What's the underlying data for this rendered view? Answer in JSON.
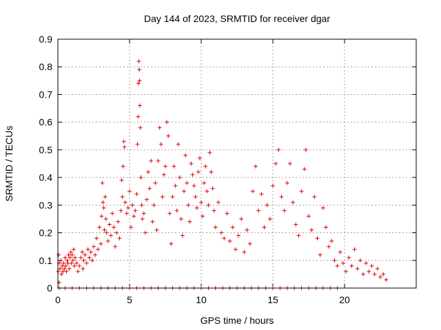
{
  "chart_data": {
    "type": "scatter",
    "title": "Day 144 of 2023, SRMTID for receiver dgar",
    "xlabel": "GPS time / hours",
    "ylabel": "SRMTID / TECUs",
    "xlim": [
      0,
      25
    ],
    "ylim": [
      0,
      0.9
    ],
    "x_ticks": [
      0,
      5,
      10,
      15,
      20
    ],
    "y_ticks": [
      0,
      0.1,
      0.2,
      0.3,
      0.4,
      0.5,
      0.6,
      0.7,
      0.8,
      0.9
    ],
    "grid": true,
    "marker": "+",
    "marker_color": "#e00000",
    "series": [
      {
        "name": "SRMTID",
        "points": [
          [
            0.02,
            0.06
          ],
          [
            0.05,
            0.12
          ],
          [
            0.08,
            0.02
          ],
          [
            0.1,
            0.09
          ],
          [
            0.15,
            0.07
          ],
          [
            0.2,
            0.1
          ],
          [
            0.25,
            0.05
          ],
          [
            0.3,
            0.08
          ],
          [
            0.35,
            0.06
          ],
          [
            0.4,
            0.09
          ],
          [
            0.45,
            0.07
          ],
          [
            0.5,
            0.11
          ],
          [
            0.55,
            0.08
          ],
          [
            0.6,
            0.06
          ],
          [
            0.65,
            0.1
          ],
          [
            0.7,
            0.09
          ],
          [
            0.75,
            0.12
          ],
          [
            0.8,
            0.07
          ],
          [
            0.85,
            0.11
          ],
          [
            0.9,
            0.13
          ],
          [
            0.95,
            0.09
          ],
          [
            1.0,
            0.12
          ],
          [
            1.05,
            0.1
          ],
          [
            1.1,
            0.14
          ],
          [
            1.15,
            0.08
          ],
          [
            1.2,
            0.11
          ],
          [
            1.3,
            0.09
          ],
          [
            1.4,
            0.06
          ],
          [
            1.5,
            0.08
          ],
          [
            1.6,
            0.11
          ],
          [
            1.7,
            0.13
          ],
          [
            1.75,
            0.07
          ],
          [
            1.8,
            0.1
          ],
          [
            1.9,
            0.12
          ],
          [
            2.0,
            0.09
          ],
          [
            2.1,
            0.14
          ],
          [
            2.2,
            0.11
          ],
          [
            2.3,
            0.13
          ],
          [
            2.4,
            0.1
          ],
          [
            2.5,
            0.15
          ],
          [
            2.6,
            0.12
          ],
          [
            2.7,
            0.18
          ],
          [
            2.8,
            0.14
          ],
          [
            2.9,
            0.22
          ],
          [
            3.0,
            0.16
          ],
          [
            3.05,
            0.26
          ],
          [
            3.1,
            0.38
          ],
          [
            3.15,
            0.31
          ],
          [
            3.2,
            0.29
          ],
          [
            3.25,
            0.21
          ],
          [
            3.3,
            0.33
          ],
          [
            3.35,
            0.25
          ],
          [
            3.4,
            0.2
          ],
          [
            3.5,
            0.17
          ],
          [
            3.6,
            0.23
          ],
          [
            3.7,
            0.19
          ],
          [
            3.8,
            0.27
          ],
          [
            3.9,
            0.22
          ],
          [
            4.0,
            0.15
          ],
          [
            4.1,
            0.2
          ],
          [
            4.2,
            0.24
          ],
          [
            4.3,
            0.18
          ],
          [
            4.4,
            0.28
          ],
          [
            4.45,
            0.39
          ],
          [
            4.5,
            0.33
          ],
          [
            4.55,
            0.44
          ],
          [
            4.6,
            0.53
          ],
          [
            4.65,
            0.51
          ],
          [
            4.7,
            0.31
          ],
          [
            4.8,
            0.27
          ],
          [
            4.9,
            0.29
          ],
          [
            5.0,
            0.35
          ],
          [
            5.1,
            0.22
          ],
          [
            5.2,
            0.3
          ],
          [
            5.3,
            0.26
          ],
          [
            5.4,
            0.28
          ],
          [
            5.5,
            0.34
          ],
          [
            5.55,
            0.52
          ],
          [
            5.6,
            0.62
          ],
          [
            5.62,
            0.74
          ],
          [
            5.65,
            0.82
          ],
          [
            5.68,
            0.79
          ],
          [
            5.7,
            0.75
          ],
          [
            5.72,
            0.66
          ],
          [
            5.75,
            0.58
          ],
          [
            5.8,
            0.4
          ],
          [
            5.85,
            0.3
          ],
          [
            5.9,
            0.25
          ],
          [
            6.0,
            0.27
          ],
          [
            6.1,
            0.2
          ],
          [
            6.2,
            0.32
          ],
          [
            6.3,
            0.42
          ],
          [
            6.4,
            0.36
          ],
          [
            6.5,
            0.46
          ],
          [
            6.6,
            0.24
          ],
          [
            6.7,
            0.3
          ],
          [
            6.8,
            0.38
          ],
          [
            6.9,
            0.21
          ],
          [
            7.0,
            0.46
          ],
          [
            7.1,
            0.58
          ],
          [
            7.2,
            0.52
          ],
          [
            7.3,
            0.33
          ],
          [
            7.4,
            0.41
          ],
          [
            7.5,
            0.44
          ],
          [
            7.6,
            0.6
          ],
          [
            7.7,
            0.55
          ],
          [
            7.8,
            0.27
          ],
          [
            7.9,
            0.16
          ],
          [
            8.0,
            0.33
          ],
          [
            8.1,
            0.44
          ],
          [
            8.2,
            0.37
          ],
          [
            8.3,
            0.28
          ],
          [
            8.4,
            0.52
          ],
          [
            8.5,
            0.4
          ],
          [
            8.6,
            0.25
          ],
          [
            8.7,
            0.19
          ],
          [
            8.8,
            0.35
          ],
          [
            8.9,
            0.48
          ],
          [
            9.0,
            0.38
          ],
          [
            9.1,
            0.3
          ],
          [
            9.2,
            0.24
          ],
          [
            9.3,
            0.45
          ],
          [
            9.4,
            0.41
          ],
          [
            9.5,
            0.37
          ],
          [
            9.6,
            0.33
          ],
          [
            9.7,
            0.29
          ],
          [
            9.8,
            0.42
          ],
          [
            9.9,
            0.47
          ],
          [
            10.0,
            0.31
          ],
          [
            10.1,
            0.26
          ],
          [
            10.2,
            0.38
          ],
          [
            10.3,
            0.44
          ],
          [
            10.4,
            0.35
          ],
          [
            10.5,
            0.3
          ],
          [
            10.6,
            0.49
          ],
          [
            10.7,
            0.42
          ],
          [
            10.8,
            0.36
          ],
          [
            10.9,
            0.28
          ],
          [
            11.0,
            0.22
          ],
          [
            11.2,
            0.31
          ],
          [
            11.4,
            0.2
          ],
          [
            11.6,
            0.18
          ],
          [
            11.8,
            0.27
          ],
          [
            12.0,
            0.17
          ],
          [
            12.2,
            0.22
          ],
          [
            12.4,
            0.14
          ],
          [
            12.6,
            0.19
          ],
          [
            12.8,
            0.25
          ],
          [
            13.0,
            0.13
          ],
          [
            13.2,
            0.21
          ],
          [
            13.4,
            0.16
          ],
          [
            13.6,
            0.35
          ],
          [
            13.8,
            0.44
          ],
          [
            14.0,
            0.28
          ],
          [
            14.2,
            0.34
          ],
          [
            14.4,
            0.22
          ],
          [
            14.6,
            0.3
          ],
          [
            14.8,
            0.25
          ],
          [
            15.0,
            0.37
          ],
          [
            15.2,
            0.45
          ],
          [
            15.4,
            0.5
          ],
          [
            15.6,
            0.33
          ],
          [
            15.8,
            0.28
          ],
          [
            16.0,
            0.38
          ],
          [
            16.2,
            0.45
          ],
          [
            16.4,
            0.31
          ],
          [
            16.6,
            0.23
          ],
          [
            16.8,
            0.19
          ],
          [
            17.0,
            0.35
          ],
          [
            17.2,
            0.43
          ],
          [
            17.3,
            0.5
          ],
          [
            17.5,
            0.26
          ],
          [
            17.7,
            0.21
          ],
          [
            17.9,
            0.33
          ],
          [
            18.1,
            0.18
          ],
          [
            18.3,
            0.12
          ],
          [
            18.5,
            0.29
          ],
          [
            18.7,
            0.22
          ],
          [
            18.9,
            0.15
          ],
          [
            19.1,
            0.17
          ],
          [
            19.3,
            0.1
          ],
          [
            19.5,
            0.08
          ],
          [
            19.7,
            0.13
          ],
          [
            19.9,
            0.09
          ],
          [
            20.1,
            0.06
          ],
          [
            20.3,
            0.11
          ],
          [
            20.5,
            0.08
          ],
          [
            20.7,
            0.14
          ],
          [
            20.9,
            0.07
          ],
          [
            21.1,
            0.1
          ],
          [
            21.3,
            0.05
          ],
          [
            21.5,
            0.09
          ],
          [
            21.7,
            0.06
          ],
          [
            21.9,
            0.08
          ],
          [
            22.1,
            0.05
          ],
          [
            22.3,
            0.07
          ],
          [
            22.5,
            0.04
          ],
          [
            22.7,
            0.05
          ],
          [
            22.9,
            0.03
          ]
        ]
      }
    ],
    "zero_markers_x": [
      0.1,
      0.5,
      1.0,
      1.5,
      2.0,
      2.5,
      3.0,
      3.5,
      4.0,
      4.5,
      5.0,
      5.5,
      6.0,
      6.5,
      7.0,
      7.5,
      8.0,
      8.5,
      9.0,
      9.5,
      10.0,
      10.5,
      11.0,
      11.5,
      12.0,
      12.5,
      13.0,
      13.5,
      14.0,
      14.5,
      15.0,
      15.5,
      16.0,
      16.5,
      17.0,
      17.5,
      18.0,
      18.5,
      19.0,
      19.5
    ]
  }
}
